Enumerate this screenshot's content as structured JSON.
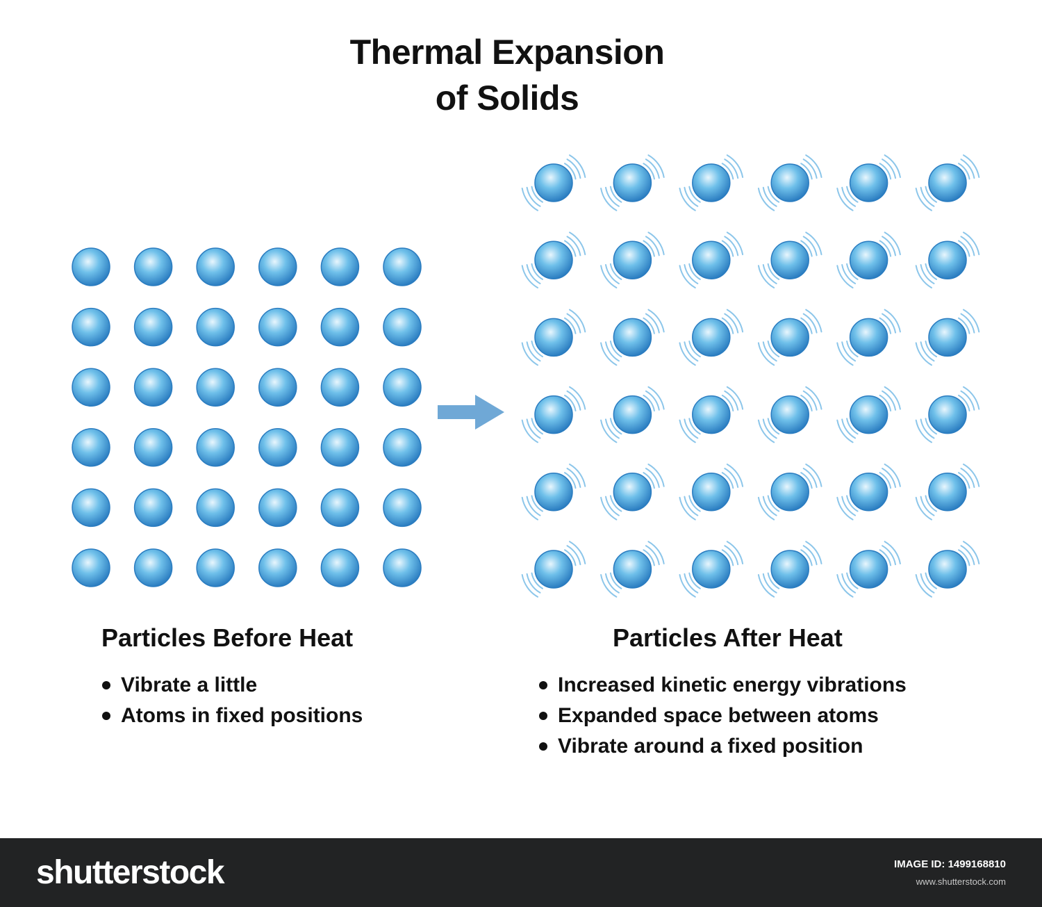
{
  "title": {
    "line1": "Thermal Expansion",
    "line2": "of Solids"
  },
  "before": {
    "heading": "Particles Before Heat",
    "bullets": [
      "Vibrate a little",
      "Atoms in fixed positions"
    ],
    "rows": 6,
    "cols": 6
  },
  "after": {
    "heading": "Particles After Heat",
    "bullets": [
      "Increased kinetic energy vibrations",
      "Expanded space between atoms",
      "Vibrate around a fixed position"
    ],
    "rows": 6,
    "cols": 6
  },
  "arrow": {
    "icon": "arrow-right-icon",
    "color": "#6fa8d6"
  },
  "colors": {
    "particle_light": "#e8f6fd",
    "particle_mid": "#6fc0ea",
    "particle_dark": "#2a7cc0",
    "vibration": "#8cc6ea",
    "text": "#111111",
    "footer_bg": "#222324"
  },
  "footer": {
    "logo": "shutterstock",
    "image_id_label": "IMAGE ID:",
    "image_id": "1499168810",
    "url": "www.shutterstock.com"
  }
}
